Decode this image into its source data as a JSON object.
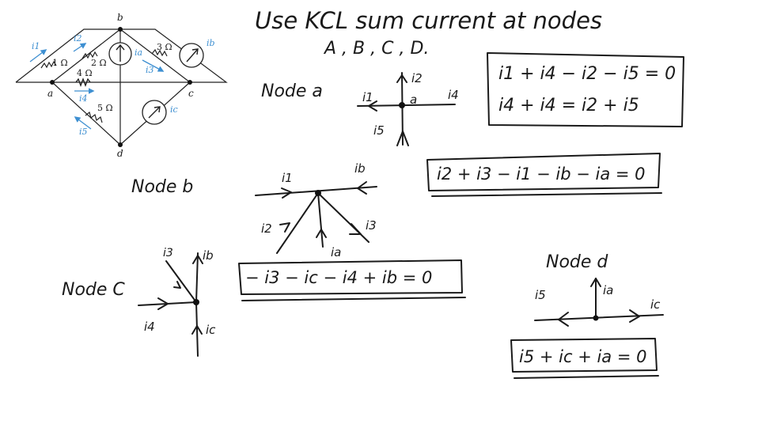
{
  "heading": {
    "line1": "Use KCL sum current at nodes",
    "line2": "A , B , C , D."
  },
  "circuit": {
    "nodes": [
      "a",
      "b",
      "c",
      "d"
    ],
    "resistors": [
      "1 Ω",
      "2 Ω",
      "3 Ω",
      "4 Ω",
      "5 Ω"
    ],
    "currents": [
      "i1",
      "i2",
      "i3",
      "i4",
      "i5",
      "ia",
      "ib",
      "ic"
    ],
    "accent": "#3d8fd1"
  },
  "node_a": {
    "title": "Node a",
    "center": "a",
    "branches": [
      "i2",
      "i4",
      "i1",
      "i5"
    ],
    "eq1": "i1 + i4 − i2 − i5 = 0",
    "eq2": "i4 + i4 = i2 + i5"
  },
  "node_b": {
    "title": "Node b",
    "branches": [
      "i1",
      "ib",
      "i2",
      "i3",
      "ia"
    ],
    "equation": "i2 + i3 − i1 − ib − ia = 0"
  },
  "node_c": {
    "title": "Node C",
    "branches": [
      "i3",
      "ib",
      "i4",
      "ic"
    ],
    "equation": "− i3 − ic − i4 + ib = 0"
  },
  "node_d": {
    "title": "Node d",
    "branches": [
      "i5",
      "ia",
      "ic"
    ],
    "equation": "i5 + ic + ia = 0"
  }
}
